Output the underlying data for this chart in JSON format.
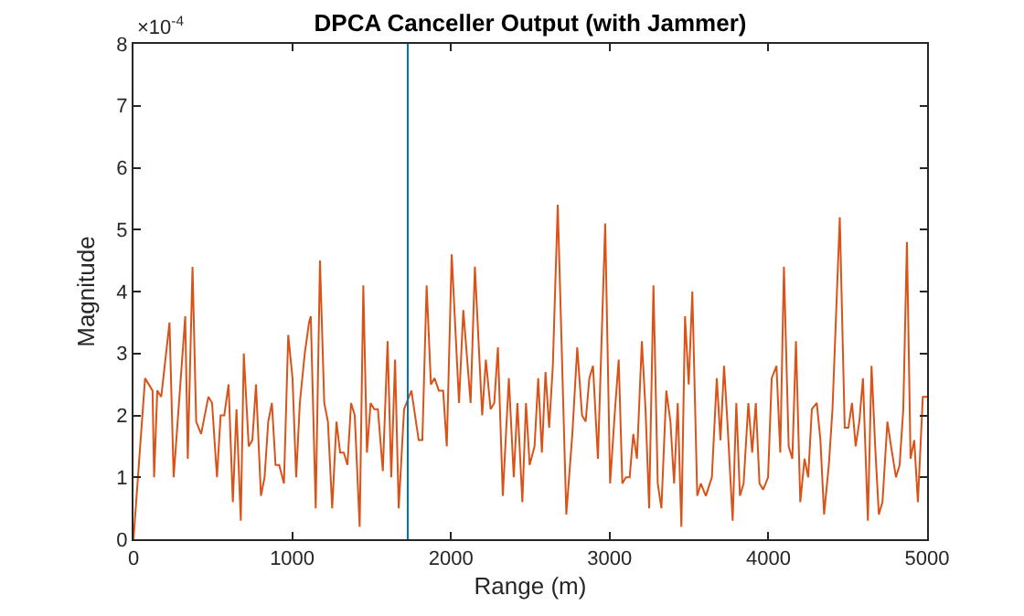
{
  "chart_data": {
    "type": "line",
    "title": "DPCA Canceller Output (with Jammer)",
    "xlabel": "Range (m)",
    "ylabel": "Magnitude",
    "annotations": [
      "×10$^{-4}$"
    ],
    "x": [
      0,
      73,
      120,
      130,
      150,
      175,
      227,
      253,
      326,
      342,
      372,
      395,
      426,
      472,
      495,
      526,
      549,
      572,
      599,
      626,
      649,
      676,
      695,
      726,
      749,
      772,
      803,
      826,
      849,
      872,
      895,
      918,
      948,
      975,
      1002,
      1025,
      1048,
      1079,
      1106,
      1117,
      1148,
      1175,
      1202,
      1225,
      1252,
      1279,
      1302,
      1325,
      1348,
      1371,
      1394,
      1425,
      1448,
      1471,
      1494,
      1517,
      1540,
      1571,
      1601,
      1624,
      1648,
      1671,
      1705,
      1751,
      1797,
      1820,
      1847,
      1874,
      1897,
      1924,
      1951,
      1974,
      2005,
      2051,
      2078,
      2124,
      2151,
      2197,
      2220,
      2250,
      2273,
      2296,
      2327,
      2365,
      2396,
      2419,
      2450,
      2473,
      2496,
      2527,
      2550,
      2573,
      2596,
      2619,
      2642,
      2673,
      2727,
      2765,
      2796,
      2826,
      2849,
      2872,
      2895,
      2926,
      2972,
      3003,
      3034,
      3057,
      3080,
      3103,
      3126,
      3149,
      3172,
      3203,
      3226,
      3249,
      3276,
      3303,
      3326,
      3357,
      3383,
      3406,
      3429,
      3452,
      3475,
      3498,
      3521,
      3552,
      3575,
      3606,
      3644,
      3675,
      3698,
      3721,
      3744,
      3775,
      3798,
      3821,
      3844,
      3874,
      3898,
      3921,
      3944,
      3967,
      3998,
      4021,
      4051,
      4075,
      4098,
      4128,
      4151,
      4174,
      4201,
      4228,
      4251,
      4274,
      4305,
      4328,
      4351,
      4381,
      4404,
      4450,
      4481,
      4504,
      4527,
      4550,
      4573,
      4596,
      4627,
      4650,
      4673,
      4696,
      4719,
      4750,
      4773,
      4804,
      4827,
      4850,
      4873,
      4896,
      4919,
      4942,
      4973,
      5000
    ],
    "series": [
      {
        "color": "#d95319",
        "values": [
          0.0,
          2.6,
          2.4,
          1.0,
          2.4,
          2.3,
          3.5,
          1.0,
          3.6,
          1.3,
          4.4,
          1.9,
          1.7,
          2.3,
          2.2,
          1.0,
          2.0,
          2.0,
          2.5,
          0.6,
          2.1,
          0.3,
          3.0,
          1.5,
          1.6,
          2.5,
          0.7,
          1.0,
          1.9,
          2.2,
          1.2,
          1.2,
          0.9,
          3.3,
          2.6,
          1.0,
          2.2,
          3.0,
          3.5,
          3.6,
          0.5,
          4.5,
          2.2,
          1.9,
          0.5,
          1.9,
          1.4,
          1.4,
          1.2,
          2.2,
          2.0,
          0.2,
          4.1,
          1.4,
          2.2,
          2.1,
          2.1,
          1.1,
          3.2,
          1.0,
          2.9,
          0.5,
          2.1,
          2.4,
          1.6,
          1.6,
          4.1,
          2.5,
          2.6,
          2.4,
          2.4,
          1.5,
          4.6,
          2.2,
          3.7,
          2.2,
          4.4,
          2.0,
          2.9,
          2.1,
          2.2,
          3.1,
          0.7,
          2.6,
          1.0,
          2.2,
          0.6,
          2.2,
          1.2,
          1.5,
          2.6,
          1.4,
          2.7,
          1.8,
          2.8,
          5.4,
          0.4,
          1.7,
          3.1,
          2.0,
          1.9,
          2.6,
          2.8,
          1.3,
          5.1,
          0.9,
          2.1,
          2.9,
          0.9,
          1.0,
          1.0,
          1.7,
          1.3,
          3.2,
          2.1,
          0.5,
          4.1,
          0.9,
          0.5,
          2.4,
          1.9,
          0.9,
          2.2,
          0.2,
          3.6,
          2.5,
          4.0,
          0.7,
          0.9,
          0.7,
          1.0,
          2.6,
          1.6,
          2.8,
          1.8,
          0.3,
          2.2,
          0.7,
          0.9,
          2.2,
          1.4,
          2.2,
          0.9,
          0.8,
          1.0,
          2.6,
          2.8,
          1.4,
          4.4,
          1.5,
          1.3,
          3.2,
          0.6,
          1.3,
          1.0,
          2.1,
          2.2,
          1.6,
          0.4,
          1.2,
          2.1,
          5.2,
          1.8,
          1.8,
          2.2,
          1.5,
          1.9,
          2.6,
          0.3,
          2.8,
          1.5,
          0.4,
          0.6,
          1.9,
          1.5,
          1.0,
          1.2,
          2.1,
          4.8,
          1.3,
          1.6,
          0.6,
          2.3,
          2.3
        ]
      }
    ],
    "ref_lines": [
      {
        "axis": "x",
        "value": 1728,
        "color": "#0072bd"
      }
    ],
    "xlim": [
      0,
      5000
    ],
    "xticks": [
      0,
      1000,
      2000,
      3000,
      4000,
      5000
    ],
    "ylim": [
      0,
      8
    ],
    "yticks": [
      0,
      1,
      2,
      3,
      4,
      5,
      6,
      7,
      8
    ],
    "marker": "none",
    "line_style": "solid"
  }
}
